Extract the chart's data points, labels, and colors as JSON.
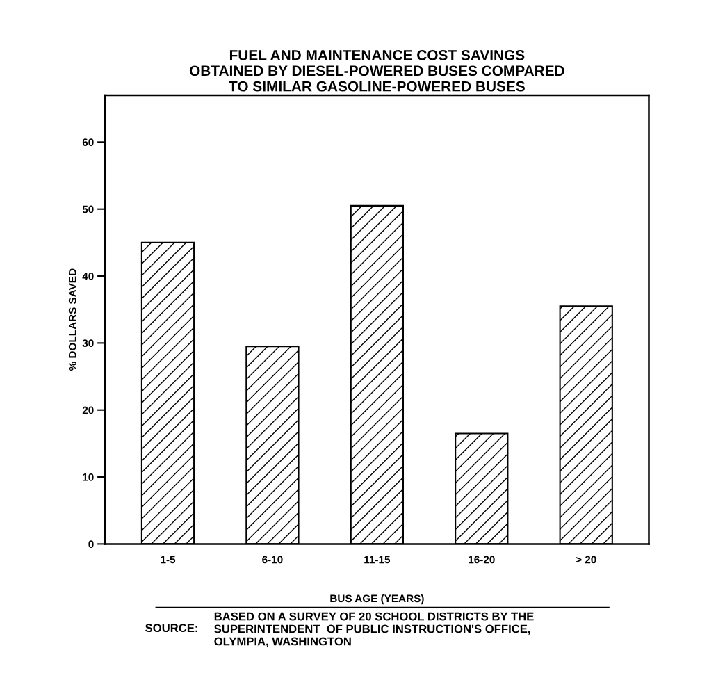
{
  "chart_data": {
    "type": "bar",
    "title": "FUEL AND MAINTENANCE COST SAVINGS\nOBTAINED BY DIESEL-POWERED BUSES COMPARED\nTO SIMILAR GASOLINE-POWERED BUSES",
    "xlabel": "BUS AGE (YEARS)",
    "ylabel": "% DOLLARS SAVED",
    "categories": [
      "1-5",
      "6-10",
      "11-15",
      "16-20",
      "> 20"
    ],
    "values": [
      45,
      29.5,
      50.5,
      16.5,
      35.5
    ],
    "color": "#000000",
    "ylim": [
      0,
      67
    ],
    "yticks": [
      0,
      10,
      20,
      30,
      40,
      50,
      60
    ],
    "grid": false,
    "annotations": [
      "SOURCE:",
      "BASED ON A SURVEY OF 20 SCHOOL DISTRICTS BY THE\nSUPERINTENDENT  OF PUBLIC INSTRUCTION'S OFFICE,\nOLYMPIA, WASHINGTON"
    ]
  }
}
